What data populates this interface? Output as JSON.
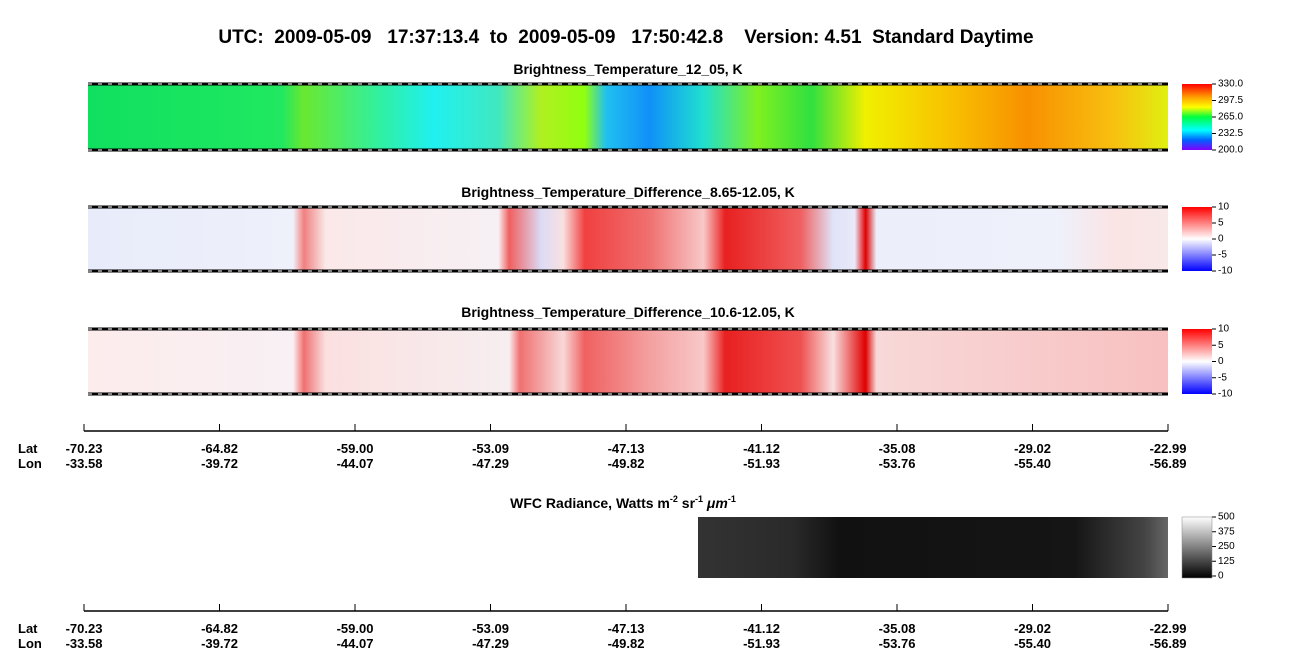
{
  "header": {
    "title": "UTC:  2009-05-09   17:37:13.4  to  2009-05-09   17:50:42.8    Version: 4.51  Standard Daytime"
  },
  "panels": [
    {
      "title": "Brightness_Temperature_12_05, K",
      "colorbar": [
        "330.0",
        "297.5",
        "265.0",
        "232.5",
        "200.0"
      ]
    },
    {
      "title": "Brightness_Temperature_Difference_8.65-12.05, K",
      "colorbar": [
        "10",
        "5",
        "0",
        "-5",
        "-10"
      ]
    },
    {
      "title": "Brightness_Temperature_Difference_10.6-12.05, K",
      "colorbar": [
        "10",
        "5",
        "0",
        "-5",
        "-10"
      ]
    }
  ],
  "wfc": {
    "title": [
      "WFC Radiance, Watts m",
      "-2",
      " sr",
      "-1",
      " μm",
      "-1"
    ],
    "colorbar": [
      "500",
      "375",
      "250",
      "125",
      "0"
    ]
  },
  "axes": [
    {
      "rows": [
        "Lat",
        "Lon"
      ],
      "lat": [
        "-70.23",
        "-64.82",
        "-59.00",
        "-53.09",
        "-47.13",
        "-41.12",
        "-35.08",
        "-29.02",
        "-22.99"
      ],
      "lon": [
        "-33.58",
        "-39.72",
        "-44.07",
        "-47.29",
        "-49.82",
        "-51.93",
        "-53.76",
        "-55.40",
        "-56.89"
      ]
    },
    {
      "rows": [
        "Lat",
        "Lon"
      ],
      "lat": [
        "-70.23",
        "-64.82",
        "-59.00",
        "-53.09",
        "-47.13",
        "-41.12",
        "-35.08",
        "-29.02",
        "-22.99"
      ],
      "lon": [
        "-33.58",
        "-39.72",
        "-44.07",
        "-47.29",
        "-49.82",
        "-51.93",
        "-53.76",
        "-55.40",
        "-56.89"
      ]
    }
  ]
}
